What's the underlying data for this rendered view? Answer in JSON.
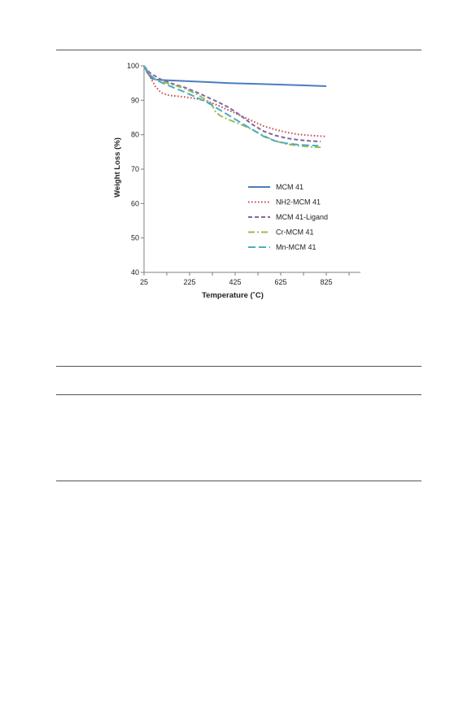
{
  "chart_data": {
    "type": "line",
    "xlabel": "Temperature (˚C)",
    "ylabel": "Weight Loss (%)",
    "xlim": [
      25,
      975
    ],
    "ylim": [
      40,
      100
    ],
    "xticks": [
      25,
      225,
      425,
      625,
      825
    ],
    "yticks": [
      40,
      50,
      60,
      70,
      80,
      90,
      100
    ],
    "grid": false,
    "legend_position": "center-right",
    "series": [
      {
        "name": "MCM 41",
        "color": "#4a7ebb",
        "dash": "solid",
        "x": [
          25,
          40,
          60,
          80,
          100,
          200,
          300,
          400,
          500,
          600,
          700,
          825
        ],
        "y": [
          100,
          98,
          96.3,
          96,
          95.9,
          95.6,
          95.3,
          95.0,
          94.8,
          94.6,
          94.4,
          94.1
        ]
      },
      {
        "name": "NH2-MCM 41",
        "color": "#c0504d",
        "dash": "dot",
        "x": [
          25,
          50,
          75,
          100,
          125,
          150,
          200,
          250,
          300,
          350,
          400,
          450,
          500,
          550,
          600,
          650,
          700,
          750,
          825
        ],
        "y": [
          100,
          97,
          94,
          92.2,
          91.6,
          91.3,
          91,
          90.5,
          89.8,
          88.5,
          87,
          85.5,
          84,
          82.5,
          81.5,
          80.7,
          80.1,
          79.8,
          79.5
        ]
      },
      {
        "name": "MCM 41-Ligand",
        "color": "#8064a2",
        "dash": "dash",
        "x": [
          25,
          50,
          75,
          100,
          150,
          200,
          250,
          300,
          350,
          400,
          450,
          500,
          550,
          600,
          650,
          700,
          750,
          800
        ],
        "y": [
          100,
          98,
          97,
          96,
          94.8,
          93.8,
          92.5,
          91,
          89.5,
          87.8,
          85.5,
          83,
          81,
          79.8,
          79,
          78.5,
          78.2,
          78
        ]
      },
      {
        "name": "Cr-MCM 41",
        "color": "#9bbb59",
        "dash": "dashdot",
        "x": [
          25,
          50,
          75,
          100,
          150,
          200,
          250,
          300,
          320,
          340,
          360,
          400,
          450,
          500,
          550,
          600,
          650,
          700,
          750,
          800
        ],
        "y": [
          100,
          97.5,
          96,
          95.5,
          94.5,
          93.5,
          92,
          90,
          89,
          86.5,
          85.5,
          84.3,
          83,
          81.5,
          79.7,
          78.2,
          77.3,
          76.8,
          76.5,
          76.3
        ]
      },
      {
        "name": "Mn-MCM 41",
        "color": "#4bacc6",
        "dash": "longdash",
        "x": [
          25,
          50,
          75,
          100,
          150,
          200,
          250,
          300,
          350,
          400,
          450,
          500,
          550,
          600,
          650,
          700,
          750,
          790
        ],
        "y": [
          100,
          97.5,
          96,
          95.2,
          93.8,
          92.5,
          91,
          89.5,
          87.5,
          85.5,
          83.5,
          81.5,
          79.5,
          78.2,
          77.5,
          77.1,
          76.9,
          76.8
        ]
      }
    ]
  }
}
